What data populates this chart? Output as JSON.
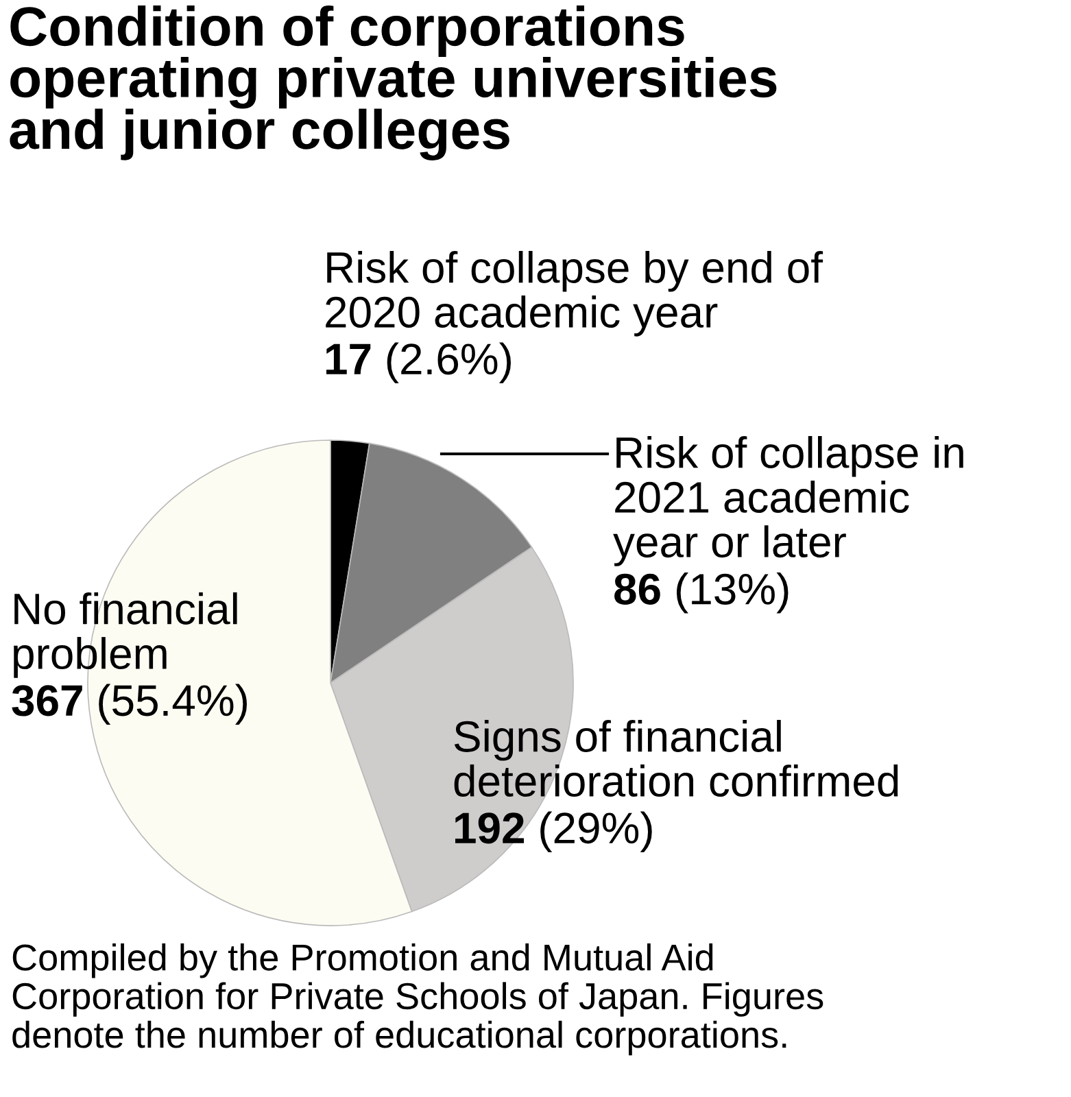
{
  "chart_data": {
    "type": "pie",
    "title": "Condition of corporations\noperating private universities\nand junior colleges",
    "categories": [
      "Risk of collapse by end of\n2020 academic year",
      "Risk of collapse in\n2021 academic\nyear or later",
      "Signs of financial\ndeterioration confirmed",
      "No financial\nproblem"
    ],
    "values": [
      17,
      86,
      192,
      367
    ],
    "colors": [
      "#000000",
      "#808080",
      "#cfcccc",
      "#fdfcf2"
    ],
    "value_labels": [
      "17 (2.6%)",
      "86 (13%)",
      "192 (29%)",
      "367 (55.4%)"
    ],
    "annotations": [
      "Compiled by the Promotion and Mutual Aid\nCorporation for Private Schools of Japan. Figures\ndenote the number of educational corporations."
    ]
  }
}
